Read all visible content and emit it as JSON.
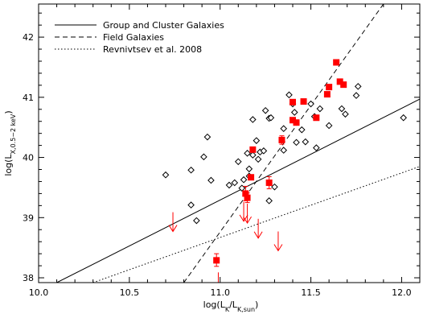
{
  "chart_data": {
    "type": "scatter",
    "xlabel": "log(L_K/L_K,sun)",
    "ylabel": "log(L_X,0.5-2 keV)",
    "xlim": [
      10.0,
      12.1
    ],
    "ylim": [
      37.92,
      42.55
    ],
    "x_ticks": [
      10.0,
      10.5,
      11.0,
      11.5,
      12.0
    ],
    "x_tick_labels": [
      "10.0",
      "10.5",
      "11.0",
      "11.5",
      "12.0"
    ],
    "y_ticks": [
      38,
      39,
      40,
      41,
      42
    ],
    "y_tick_labels": [
      "38",
      "39",
      "40",
      "41",
      "42"
    ],
    "legend_position": "top-left",
    "legend": [
      {
        "label": "Group and Cluster Galaxies",
        "style": "solid"
      },
      {
        "label": "Field Galaxies",
        "style": "dashed"
      },
      {
        "label": "Revnivtsev et al. 2008",
        "style": "dotted"
      }
    ],
    "fit_lines": [
      {
        "style": "solid",
        "x": [
          10.1,
          12.1
        ],
        "y": [
          37.92,
          40.97
        ]
      },
      {
        "style": "dashed",
        "x": [
          10.8,
          11.9
        ],
        "y": [
          37.92,
          42.55
        ]
      },
      {
        "style": "dotted",
        "x": [
          10.3,
          12.1
        ],
        "y": [
          37.92,
          39.85
        ]
      }
    ],
    "series": [
      {
        "marker": "open-diamond",
        "color": "#000000",
        "points": [
          [
            10.7,
            39.71
          ],
          [
            10.84,
            39.79
          ],
          [
            10.84,
            39.21
          ],
          [
            10.87,
            38.95
          ],
          [
            10.91,
            40.01
          ],
          [
            10.93,
            40.34
          ],
          [
            10.95,
            39.62
          ],
          [
            11.05,
            39.54
          ],
          [
            11.08,
            39.58
          ],
          [
            11.1,
            39.93
          ],
          [
            11.12,
            39.49
          ],
          [
            11.13,
            39.63
          ],
          [
            11.15,
            40.07
          ],
          [
            11.16,
            39.81
          ],
          [
            11.16,
            39.69
          ],
          [
            11.18,
            40.04
          ],
          [
            11.18,
            40.63
          ],
          [
            11.2,
            40.28
          ],
          [
            11.21,
            39.97
          ],
          [
            11.22,
            40.09
          ],
          [
            11.24,
            40.11
          ],
          [
            11.25,
            40.78
          ],
          [
            11.27,
            40.65
          ],
          [
            11.27,
            39.28
          ],
          [
            11.28,
            40.66
          ],
          [
            11.3,
            39.51
          ],
          [
            11.35,
            40.12
          ],
          [
            11.35,
            40.48
          ],
          [
            11.38,
            41.04
          ],
          [
            11.4,
            40.89
          ],
          [
            11.41,
            40.75
          ],
          [
            11.42,
            40.25
          ],
          [
            11.45,
            40.46
          ],
          [
            11.47,
            40.26
          ],
          [
            11.5,
            40.89
          ],
          [
            11.52,
            40.68
          ],
          [
            11.53,
            40.16
          ],
          [
            11.55,
            40.81
          ],
          [
            11.6,
            40.53
          ],
          [
            11.67,
            40.81
          ],
          [
            11.69,
            40.72
          ],
          [
            11.75,
            41.03
          ],
          [
            11.76,
            41.18
          ],
          [
            12.01,
            40.66
          ]
        ]
      },
      {
        "marker": "filled-square",
        "color": "#ff0000",
        "points": [
          [
            10.98,
            38.29
          ],
          [
            11.14,
            39.4
          ],
          [
            11.15,
            39.33
          ],
          [
            11.17,
            39.67
          ],
          [
            11.18,
            40.13
          ],
          [
            11.27,
            39.58
          ],
          [
            11.34,
            40.29
          ],
          [
            11.4,
            40.92
          ],
          [
            11.4,
            40.62
          ],
          [
            11.42,
            40.58
          ],
          [
            11.46,
            40.93
          ],
          [
            11.53,
            40.66
          ],
          [
            11.59,
            41.05
          ],
          [
            11.6,
            41.17
          ],
          [
            11.64,
            41.58
          ],
          [
            11.66,
            41.26
          ],
          [
            11.68,
            41.21
          ]
        ],
        "error_bars": [
          [
            10.98,
            38.19,
            38.4
          ],
          [
            11.14,
            39.28,
            39.52
          ],
          [
            11.15,
            39.25,
            39.41
          ],
          [
            11.27,
            39.48,
            39.68
          ],
          [
            11.34,
            40.22,
            40.36
          ]
        ]
      },
      {
        "marker": "upper-limit-arrow",
        "color": "#ff0000",
        "points": [
          [
            10.74,
            39.09
          ],
          [
            10.99,
            38.09
          ],
          [
            11.13,
            39.26
          ],
          [
            11.15,
            39.23
          ],
          [
            11.21,
            38.98
          ],
          [
            11.32,
            38.77
          ]
        ]
      }
    ]
  }
}
